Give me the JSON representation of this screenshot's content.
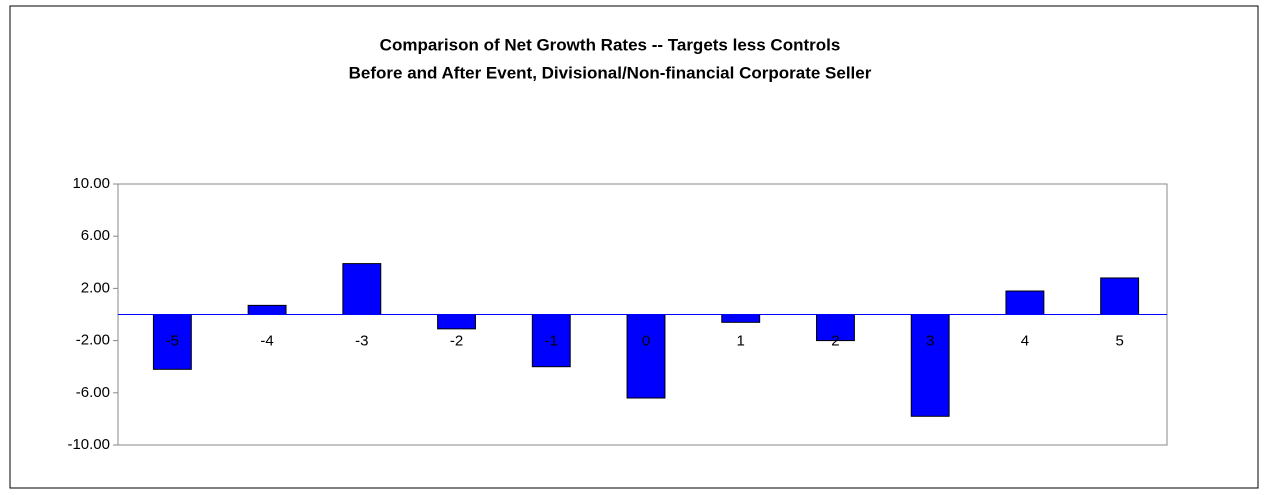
{
  "chart_data": {
    "type": "bar",
    "title": "Comparison of Net Growth Rates -- Targets less Controls",
    "subtitle": "Before and After Event, Divisional/Non-financial Corporate Seller",
    "categories": [
      "-5",
      "-4",
      "-3",
      "-2",
      "-1",
      "0",
      "1",
      "2",
      "3",
      "4",
      "5"
    ],
    "values": [
      -4.2,
      0.7,
      3.9,
      -1.1,
      -4.0,
      -6.4,
      -0.6,
      -2.0,
      -7.8,
      1.8,
      2.8
    ],
    "color": "#0000ff",
    "ylim": [
      -10,
      10
    ],
    "yticks": [
      {
        "value": -10,
        "label": "-10.00"
      },
      {
        "value": -6,
        "label": "-6.00"
      },
      {
        "value": -2,
        "label": "-2.00"
      },
      {
        "value": 2,
        "label": "2.00"
      },
      {
        "value": 6,
        "label": "6.00"
      },
      {
        "value": 10,
        "label": "10.00"
      }
    ],
    "grid": false
  }
}
